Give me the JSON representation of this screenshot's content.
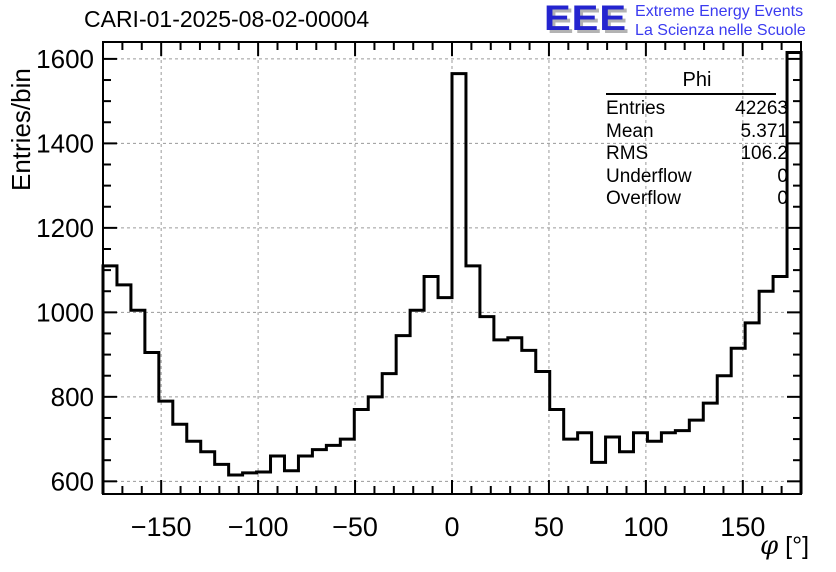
{
  "header": {
    "title": "CARI-01-2025-08-02-00004"
  },
  "logo": {
    "acronym": "EEE",
    "line1": "Extreme Energy Events",
    "line2": "La Scienza nelle Scuole",
    "acronym_color": "#2424cf",
    "tagline_color": "#3b3bf0",
    "shadow_color": "#b3b3b3"
  },
  "stats_box": {
    "title": "Phi",
    "rows": [
      {
        "label": "Entries",
        "value": "42263"
      },
      {
        "label": "Mean",
        "value": "5.371"
      },
      {
        "label": "RMS",
        "value": "106.2"
      },
      {
        "label": "Underflow",
        "value": "0"
      },
      {
        "label": "Overflow",
        "value": "0"
      }
    ]
  },
  "axes": {
    "y_title": "Entries/bin",
    "x_title_symbol": "φ",
    "x_title_unit": " [°]"
  },
  "chart_data": {
    "type": "bar",
    "style": "step-outline-histogram",
    "title": "CARI-01-2025-08-02-00004",
    "xlabel": "φ [°]",
    "ylabel": "Entries/bin",
    "xlim": [
      -180,
      180
    ],
    "ylim": [
      570,
      1640
    ],
    "bin_start": -180,
    "bin_width": 7.2,
    "n_bins": 50,
    "values": [
      1110,
      1065,
      1005,
      905,
      790,
      735,
      695,
      670,
      640,
      615,
      620,
      622,
      660,
      625,
      660,
      675,
      685,
      700,
      770,
      800,
      855,
      945,
      1005,
      1085,
      1035,
      1565,
      1110,
      990,
      935,
      940,
      910,
      860,
      770,
      700,
      715,
      645,
      705,
      670,
      715,
      695,
      715,
      720,
      745,
      785,
      850,
      915,
      975,
      1050,
      1085,
      1615
    ],
    "peak_bin": {
      "x_range": [
        0,
        7.2
      ],
      "value": 1565
    },
    "last_bin": {
      "x_range": [
        172.8,
        180
      ],
      "value": 1615
    },
    "xticks": {
      "major_values": [
        -150,
        -100,
        -50,
        0,
        50,
        100,
        150
      ],
      "major_labels": [
        "−150",
        "−100",
        "−50",
        "0",
        "50",
        "100",
        "150"
      ],
      "minor_step": 10
    },
    "yticks": {
      "major_values": [
        600,
        800,
        1000,
        1200,
        1400,
        1600
      ],
      "major_labels": [
        "600",
        "800",
        "1000",
        "1200",
        "1400",
        "1600"
      ],
      "minor_step": 50
    },
    "grid": {
      "show": true,
      "style": "dashed",
      "color": "#9a9a9a"
    },
    "line_color": "#000000",
    "frame_color": "#000000",
    "legend_position": "none"
  }
}
